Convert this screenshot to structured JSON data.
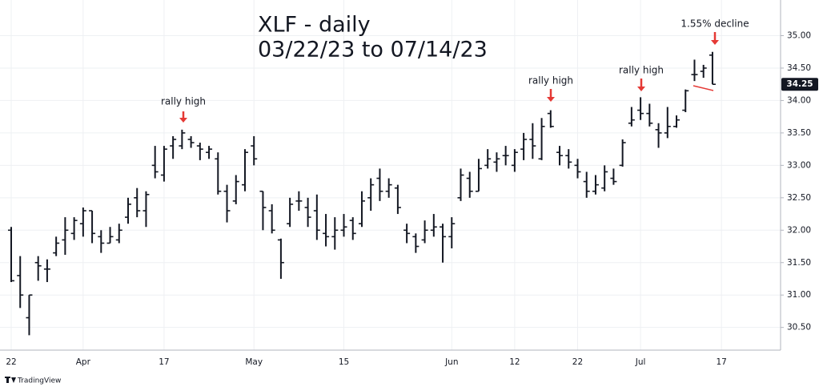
{
  "chart_data": {
    "type": "ohlc",
    "title": "XLF - daily",
    "subtitle": "03/22/23 to 07/14/23",
    "categories": [
      "22",
      null,
      null,
      null,
      null,
      null,
      null,
      null,
      "Apr",
      null,
      null,
      null,
      null,
      null,
      null,
      null,
      null,
      "17",
      null,
      null,
      null,
      null,
      null,
      null,
      null,
      null,
      null,
      "May",
      null,
      null,
      null,
      null,
      null,
      null,
      null,
      null,
      null,
      "15",
      null,
      null,
      null,
      null,
      null,
      null,
      null,
      null,
      null,
      null,
      null,
      "Jun",
      null,
      null,
      null,
      null,
      null,
      null,
      "12",
      null,
      null,
      null,
      null,
      null,
      null,
      "22",
      null,
      null,
      null,
      null,
      null,
      null,
      "Jul",
      null,
      null,
      null,
      null,
      null,
      null,
      null,
      null,
      "17"
    ],
    "open": [
      32.0,
      31.3,
      30.65,
      31.5,
      31.4,
      31.65,
      31.85,
      31.95,
      32.1,
      32.3,
      31.9,
      31.8,
      31.85,
      32.2,
      32.5,
      32.3,
      33.0,
      32.85,
      33.3,
      33.3,
      33.4,
      33.3,
      33.2,
      33.1,
      32.6,
      32.45,
      32.7,
      33.3,
      32.6,
      32.3,
      31.85,
      32.1,
      32.45,
      32.35,
      32.3,
      31.95,
      31.9,
      32.0,
      32.15,
      32.1,
      32.5,
      32.8,
      32.6,
      32.65,
      32.0,
      31.9,
      31.85,
      32.0,
      32.05,
      31.9,
      32.5,
      32.8,
      32.6,
      33.0,
      33.05,
      33.15,
      33.0,
      33.25,
      33.4,
      33.1,
      33.8,
      33.2,
      33.15,
      33.0,
      32.75,
      32.6,
      32.65,
      32.8,
      33.0,
      33.65,
      33.85,
      33.8,
      33.55,
      33.5,
      33.6,
      33.85,
      34.4,
      34.45,
      34.7,
      null
    ],
    "high": [
      32.05,
      31.6,
      31.0,
      31.6,
      31.55,
      31.9,
      32.2,
      32.2,
      32.35,
      32.3,
      32.0,
      32.05,
      32.1,
      32.5,
      32.65,
      32.6,
      33.3,
      33.3,
      33.45,
      33.55,
      33.45,
      33.35,
      33.3,
      33.2,
      32.7,
      32.85,
      33.25,
      33.45,
      32.6,
      32.4,
      31.87,
      32.5,
      32.6,
      32.5,
      32.55,
      32.25,
      32.2,
      32.25,
      32.2,
      32.6,
      32.8,
      32.95,
      32.8,
      32.7,
      32.1,
      31.95,
      32.15,
      32.25,
      32.1,
      32.2,
      32.95,
      32.9,
      33.1,
      33.25,
      33.2,
      33.3,
      33.25,
      33.5,
      33.65,
      33.73,
      33.85,
      33.3,
      33.25,
      33.1,
      32.9,
      32.85,
      33.0,
      32.95,
      33.4,
      33.9,
      34.05,
      33.95,
      33.65,
      33.9,
      33.77,
      34.17,
      34.63,
      34.55,
      34.75,
      null
    ],
    "low": [
      31.2,
      30.8,
      30.38,
      31.22,
      31.2,
      31.6,
      31.62,
      31.85,
      31.9,
      31.8,
      31.65,
      31.8,
      31.8,
      32.1,
      32.2,
      32.05,
      32.8,
      32.75,
      33.1,
      33.25,
      33.27,
      33.08,
      33.1,
      32.55,
      32.12,
      32.4,
      32.6,
      33.0,
      32.0,
      31.95,
      31.25,
      32.05,
      32.3,
      32.05,
      31.85,
      31.75,
      31.7,
      31.9,
      31.85,
      32.05,
      32.3,
      32.45,
      32.5,
      32.25,
      31.8,
      31.65,
      31.8,
      31.9,
      31.5,
      31.72,
      32.45,
      32.5,
      32.6,
      32.95,
      32.9,
      33.0,
      32.9,
      33.08,
      33.1,
      33.08,
      33.58,
      33.0,
      32.95,
      32.8,
      32.5,
      32.55,
      32.6,
      32.7,
      32.98,
      33.6,
      33.7,
      33.6,
      33.27,
      33.42,
      33.58,
      33.82,
      34.3,
      34.35,
      34.25,
      null
    ],
    "close": [
      31.22,
      31.0,
      31.0,
      31.45,
      31.4,
      31.8,
      32.0,
      32.15,
      32.3,
      31.95,
      31.8,
      31.9,
      32.0,
      32.4,
      32.3,
      32.55,
      32.9,
      33.25,
      33.4,
      33.5,
      33.35,
      33.25,
      33.25,
      32.6,
      32.3,
      32.75,
      33.2,
      33.1,
      32.35,
      32.0,
      31.5,
      32.4,
      32.45,
      32.2,
      32.0,
      31.9,
      32.0,
      32.05,
      31.95,
      32.45,
      32.7,
      32.6,
      32.7,
      32.35,
      31.95,
      31.75,
      32.0,
      32.05,
      31.9,
      32.1,
      32.85,
      32.6,
      32.95,
      33.1,
      33.1,
      33.15,
      33.2,
      33.4,
      33.3,
      33.6,
      33.6,
      33.15,
      33.05,
      32.9,
      32.6,
      32.7,
      32.9,
      32.75,
      33.35,
      33.7,
      33.8,
      33.65,
      33.5,
      33.6,
      33.7,
      34.15,
      34.4,
      34.5,
      34.25,
      null
    ],
    "color": "#131722",
    "ylim": [
      30.15,
      35.55
    ],
    "yticks": [
      {
        "value": 30.5,
        "label": "30.50"
      },
      {
        "value": 31,
        "label": "31.00"
      },
      {
        "value": 31.5,
        "label": "31.50"
      },
      {
        "value": 32,
        "label": "32.00"
      },
      {
        "value": 32.5,
        "label": "32.50"
      },
      {
        "value": 33,
        "label": "33.00"
      },
      {
        "value": 33.5,
        "label": "33.50"
      },
      {
        "value": 34,
        "label": "34.00"
      },
      {
        "value": 34.5,
        "label": "34.50"
      },
      {
        "value": 35,
        "label": "35.00"
      }
    ],
    "grid": true,
    "last_price": {
      "value": 34.25,
      "label": "34.25"
    },
    "annotations": [
      {
        "text": "rally high",
        "color": "#e53935"
      },
      {
        "text": "rally high",
        "color": "#e53935"
      },
      {
        "text": "rally high",
        "color": "#e53935"
      },
      {
        "text": "1.55% decline",
        "color": "#e53935"
      }
    ],
    "watermark": "TradingView"
  }
}
